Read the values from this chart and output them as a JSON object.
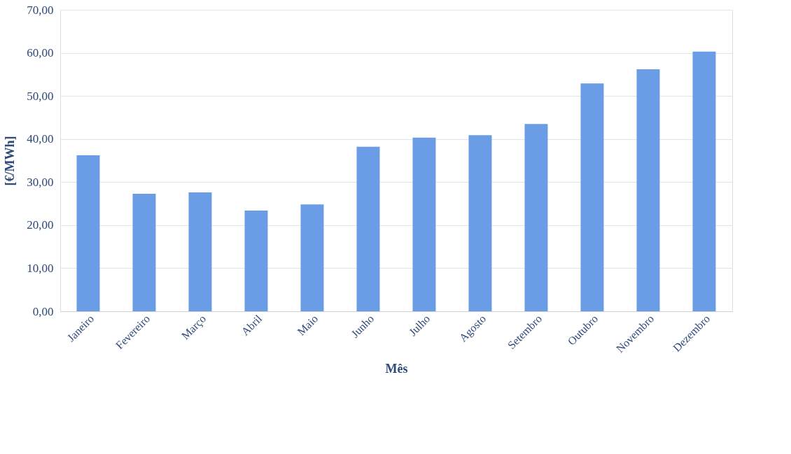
{
  "chart_data": {
    "type": "bar",
    "xlabel": "Mês",
    "ylabel": "[€/MWh]",
    "categories": [
      "Janeiro",
      "Fevereiro",
      "Março",
      "Abril",
      "Maio",
      "Junho",
      "Julho",
      "Agosto",
      "Setembro",
      "Outubro",
      "Novembro",
      "Dezembro"
    ],
    "values": [
      36.2,
      27.3,
      27.6,
      23.4,
      24.8,
      38.2,
      40.3,
      40.9,
      43.5,
      52.9,
      56.2,
      60.3
    ],
    "color": "#6a9de6",
    "ylim": [
      0,
      70
    ],
    "yticks": [
      {
        "value": 0,
        "label": "0,00"
      },
      {
        "value": 10,
        "label": "10,00"
      },
      {
        "value": 20,
        "label": "20,00"
      },
      {
        "value": 30,
        "label": "30,00"
      },
      {
        "value": 40,
        "label": "40,00"
      },
      {
        "value": 50,
        "label": "50,00"
      },
      {
        "value": 60,
        "label": "60,00"
      },
      {
        "value": 70,
        "label": "70,00"
      }
    ],
    "grid": "y"
  }
}
